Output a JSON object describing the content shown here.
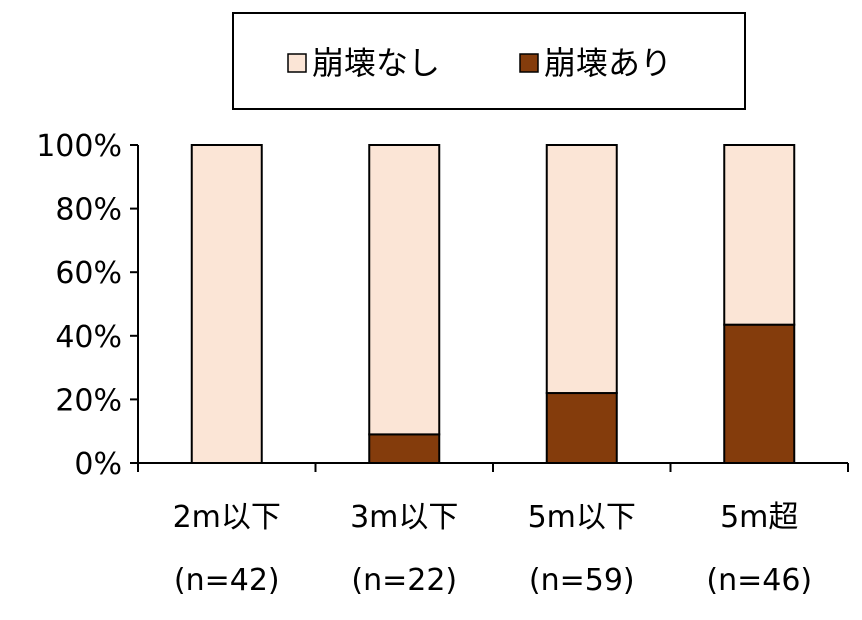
{
  "chart_data": {
    "type": "bar",
    "stacked": true,
    "percent": true,
    "categories": [
      "2m以下",
      "3m以下",
      "5m以下",
      "5m超"
    ],
    "category_counts": [
      "(n=42)",
      "(n=22)",
      "(n=59)",
      "(n=46)"
    ],
    "series": [
      {
        "name": "崩壊あり",
        "values": [
          0,
          9,
          22,
          43.5
        ],
        "color": "#843C0C"
      },
      {
        "name": "崩壊なし",
        "values": [
          100,
          91,
          78,
          56.5
        ],
        "color": "#FBE5D6"
      }
    ],
    "legend_order": [
      1,
      0
    ],
    "ylim": [
      0,
      100
    ],
    "yticks": [
      "0%",
      "20%",
      "40%",
      "60%",
      "80%",
      "100%"
    ],
    "grid": false,
    "legend": "top"
  }
}
